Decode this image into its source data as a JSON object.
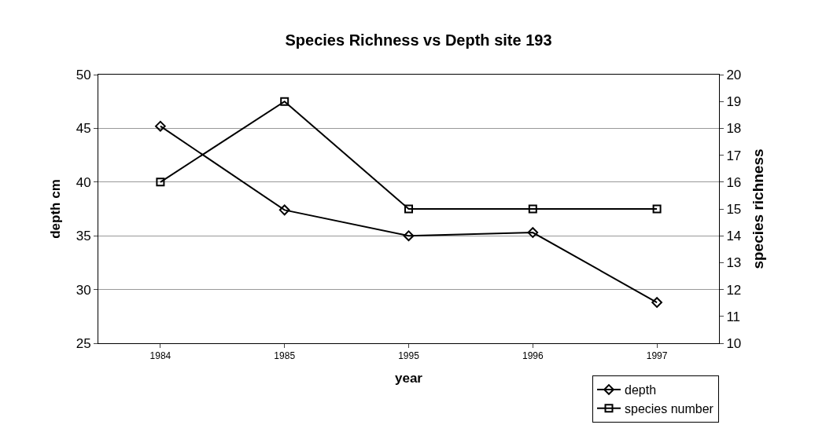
{
  "chart_data": {
    "type": "line",
    "title": "Species Richness vs Depth site 193",
    "xlabel": "year",
    "ylabel": "depth cm",
    "y2label": "species richness",
    "categories": [
      "1984",
      "1985",
      "1995",
      "1996",
      "1997"
    ],
    "series": [
      {
        "name": "depth",
        "color": "#000000",
        "marker": "diamond",
        "values": [
          45.2,
          37.4,
          35.0,
          35.3,
          28.8
        ]
      },
      {
        "name": "species number",
        "color": "#000000",
        "marker": "square",
        "axis": "y2",
        "values": [
          16,
          19,
          15,
          15,
          15
        ]
      }
    ],
    "ylim": [
      25,
      50
    ],
    "yticks": [
      25,
      30,
      35,
      40,
      45,
      50
    ],
    "y2lim": [
      10,
      20
    ],
    "y2ticks": [
      10,
      11,
      12,
      13,
      14,
      15,
      16,
      17,
      18,
      19,
      20
    ],
    "grid": "y",
    "legend": "bottom right",
    "line_style": "solid"
  }
}
